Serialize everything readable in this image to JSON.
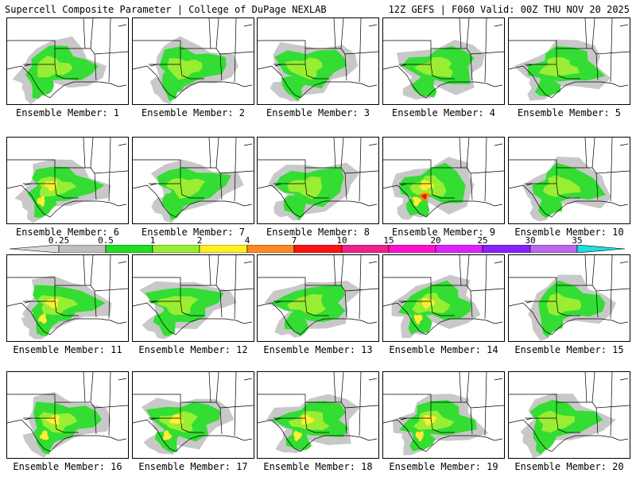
{
  "header": {
    "left": "Supercell Composite Parameter | College of DuPage NEXLAB",
    "right": "12Z GEFS | F060 Valid: 00Z THU NOV 20 2025"
  },
  "colorbar": {
    "ticks": [
      "0.25",
      "0.5",
      "1",
      "2",
      "4",
      "7",
      "10",
      "15",
      "20",
      "25",
      "30",
      "35"
    ],
    "colors": [
      "#d9d9d9",
      "#bdbdbd",
      "#22dd22",
      "#99ee33",
      "#ffee22",
      "#ff8822",
      "#ff1111",
      "#ee2288",
      "#ff11cc",
      "#dd22ff",
      "#8822ff",
      "#bb66ee",
      "#22dddd"
    ]
  },
  "palette": {
    "gray": "#c8c8c8",
    "green": "#33dd33",
    "lime": "#99ee33",
    "yellow": "#ffee33",
    "orange": "#ff8800",
    "red": "#ee1111",
    "border": "#000000"
  },
  "members": [
    {
      "label": "Ensemble Member: 1",
      "intensity": 1
    },
    {
      "label": "Ensemble Member: 2",
      "intensity": 1
    },
    {
      "label": "Ensemble Member: 3",
      "intensity": 1
    },
    {
      "label": "Ensemble Member: 4",
      "intensity": 1
    },
    {
      "label": "Ensemble Member: 5",
      "intensity": 0
    },
    {
      "label": "Ensemble Member: 6",
      "intensity": 2
    },
    {
      "label": "Ensemble Member: 7",
      "intensity": 1
    },
    {
      "label": "Ensemble Member: 8",
      "intensity": 1
    },
    {
      "label": "Ensemble Member: 9",
      "intensity": 3
    },
    {
      "label": "Ensemble Member: 10",
      "intensity": 1
    },
    {
      "label": "Ensemble Member: 11",
      "intensity": 2
    },
    {
      "label": "Ensemble Member: 12",
      "intensity": 1
    },
    {
      "label": "Ensemble Member: 13",
      "intensity": 1
    },
    {
      "label": "Ensemble Member: 14",
      "intensity": 2
    },
    {
      "label": "Ensemble Member: 15",
      "intensity": 1
    },
    {
      "label": "Ensemble Member: 16",
      "intensity": 2
    },
    {
      "label": "Ensemble Member: 17",
      "intensity": 2
    },
    {
      "label": "Ensemble Member: 18",
      "intensity": 2
    },
    {
      "label": "Ensemble Member: 19",
      "intensity": 2
    },
    {
      "label": "Ensemble Member: 20",
      "intensity": 1
    }
  ]
}
